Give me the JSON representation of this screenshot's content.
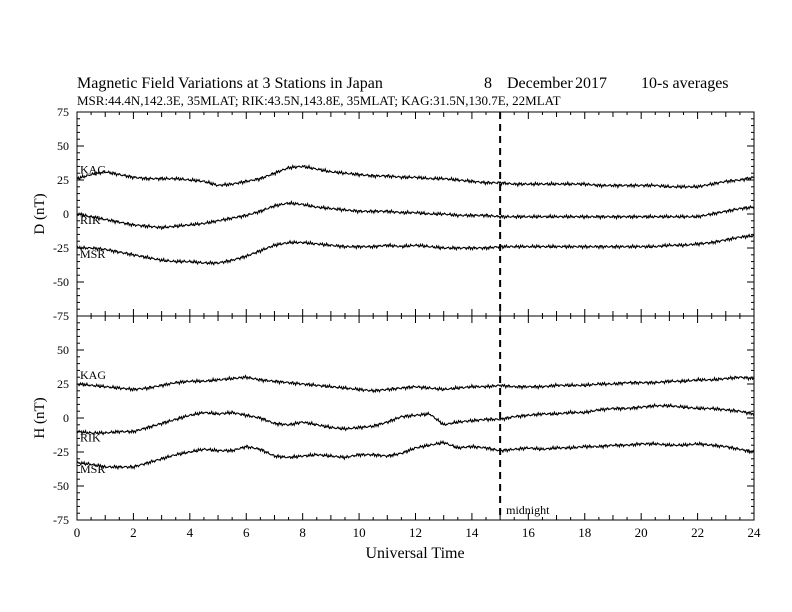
{
  "header": {
    "title": "Magnetic Field Variations at 3 Stations in Japan",
    "day": "8",
    "month": "December",
    "year": "2017",
    "averaging": "10-s averages",
    "stations_line": "MSR:44.4N,142.3E, 35MLAT;  RIK:43.5N,143.8E, 35MLAT;  KAG:31.5N,130.7E, 22MLAT"
  },
  "chart_data": [
    {
      "type": "line",
      "panel": "D",
      "ylabel": "D (nT)",
      "ylim": [
        -75,
        75
      ],
      "yticks": [
        75,
        50,
        25,
        0,
        -25,
        -50,
        -75
      ],
      "xlim": [
        0,
        24
      ],
      "grid": false,
      "x": [
        0,
        0.5,
        1,
        1.5,
        2,
        2.5,
        3,
        3.5,
        4,
        4.5,
        5,
        5.5,
        6,
        6.5,
        7,
        7.5,
        8,
        8.5,
        9,
        9.5,
        10,
        10.5,
        11,
        11.5,
        12,
        12.5,
        13,
        13.5,
        14,
        14.5,
        15,
        15.5,
        16,
        16.5,
        17,
        17.5,
        18,
        18.5,
        19,
        19.5,
        20,
        20.5,
        21,
        21.5,
        22,
        22.5,
        23,
        23.5,
        24
      ],
      "series": [
        {
          "name": "KAG",
          "values": [
            26,
            29,
            31,
            29,
            27,
            26,
            26,
            26,
            25,
            24,
            21,
            22,
            24,
            26,
            30,
            34,
            35,
            33,
            31,
            30,
            29,
            28,
            28,
            27,
            27,
            26,
            26,
            25,
            24,
            23,
            23,
            22,
            22,
            22,
            22,
            22,
            22,
            21,
            21,
            21,
            21,
            21,
            20,
            20,
            20,
            22,
            24,
            25,
            27
          ]
        },
        {
          "name": "RIK",
          "values": [
            0,
            -2,
            -4,
            -6,
            -8,
            -9,
            -10,
            -9,
            -8,
            -7,
            -5,
            -3,
            -1,
            2,
            6,
            8,
            7,
            5,
            4,
            3,
            2,
            2,
            2,
            1,
            1,
            0,
            0,
            -1,
            -1,
            -1,
            -2,
            -2,
            -2,
            -2,
            -2,
            -2,
            -2,
            -2,
            -2,
            -2,
            -2,
            -2,
            -2,
            -2,
            -2,
            0,
            2,
            4,
            5
          ]
        },
        {
          "name": "MSR",
          "values": [
            -25,
            -25,
            -26,
            -28,
            -30,
            -32,
            -34,
            -35,
            -35,
            -36,
            -36,
            -34,
            -31,
            -27,
            -23,
            -21,
            -21,
            -22,
            -23,
            -24,
            -24,
            -24,
            -23,
            -24,
            -23,
            -24,
            -25,
            -25,
            -25,
            -25,
            -24,
            -24,
            -24,
            -24,
            -24,
            -24,
            -24,
            -24,
            -24,
            -24,
            -24,
            -24,
            -23,
            -23,
            -22,
            -21,
            -19,
            -17,
            -16
          ]
        }
      ]
    },
    {
      "type": "line",
      "panel": "H",
      "ylabel": "H (nT)",
      "ylim": [
        -75,
        75
      ],
      "yticks": [
        75,
        50,
        25,
        0,
        -25,
        -50,
        -75
      ],
      "xlim": [
        0,
        24
      ],
      "xticks": [
        0,
        2,
        4,
        6,
        8,
        10,
        12,
        14,
        16,
        18,
        20,
        22,
        24
      ],
      "xlabel": "Universal Time",
      "grid": false,
      "x": [
        0,
        0.5,
        1,
        1.5,
        2,
        2.5,
        3,
        3.5,
        4,
        4.5,
        5,
        5.5,
        6,
        6.5,
        7,
        7.5,
        8,
        8.5,
        9,
        9.5,
        10,
        10.5,
        11,
        11.5,
        12,
        12.5,
        13,
        13.5,
        14,
        14.5,
        15,
        15.5,
        16,
        16.5,
        17,
        17.5,
        18,
        18.5,
        19,
        19.5,
        20,
        20.5,
        21,
        21.5,
        22,
        22.5,
        23,
        23.5,
        24
      ],
      "series": [
        {
          "name": "KAG",
          "values": [
            25,
            24,
            23,
            22,
            21,
            22,
            24,
            26,
            27,
            27,
            28,
            29,
            30,
            28,
            27,
            26,
            25,
            24,
            23,
            22,
            21,
            20,
            21,
            22,
            23,
            22,
            21,
            22,
            23,
            23,
            24,
            23,
            23,
            23,
            24,
            24,
            24,
            25,
            25,
            26,
            26,
            26,
            27,
            27,
            28,
            28,
            29,
            30,
            29
          ]
        },
        {
          "name": "RIK",
          "values": [
            -10,
            -11,
            -11,
            -10,
            -10,
            -7,
            -4,
            -1,
            2,
            4,
            3,
            4,
            2,
            0,
            -4,
            -5,
            -3,
            -5,
            -7,
            -8,
            -7,
            -6,
            -3,
            1,
            2,
            3,
            -5,
            -3,
            -2,
            -1,
            -1,
            1,
            2,
            3,
            3,
            4,
            4,
            6,
            7,
            7,
            8,
            9,
            9,
            8,
            7,
            7,
            6,
            5,
            3
          ]
        },
        {
          "name": "MSR",
          "values": [
            -33,
            -34,
            -36,
            -36,
            -36,
            -33,
            -30,
            -27,
            -25,
            -23,
            -24,
            -24,
            -21,
            -23,
            -28,
            -29,
            -28,
            -27,
            -28,
            -29,
            -27,
            -27,
            -28,
            -26,
            -22,
            -20,
            -18,
            -22,
            -21,
            -22,
            -24,
            -23,
            -22,
            -23,
            -22,
            -22,
            -21,
            -21,
            -20,
            -20,
            -19,
            -19,
            -20,
            -20,
            -19,
            -20,
            -21,
            -23,
            -25
          ]
        }
      ]
    }
  ],
  "annotations": {
    "midnight_label": "midnight",
    "midnight_ut": 15
  }
}
